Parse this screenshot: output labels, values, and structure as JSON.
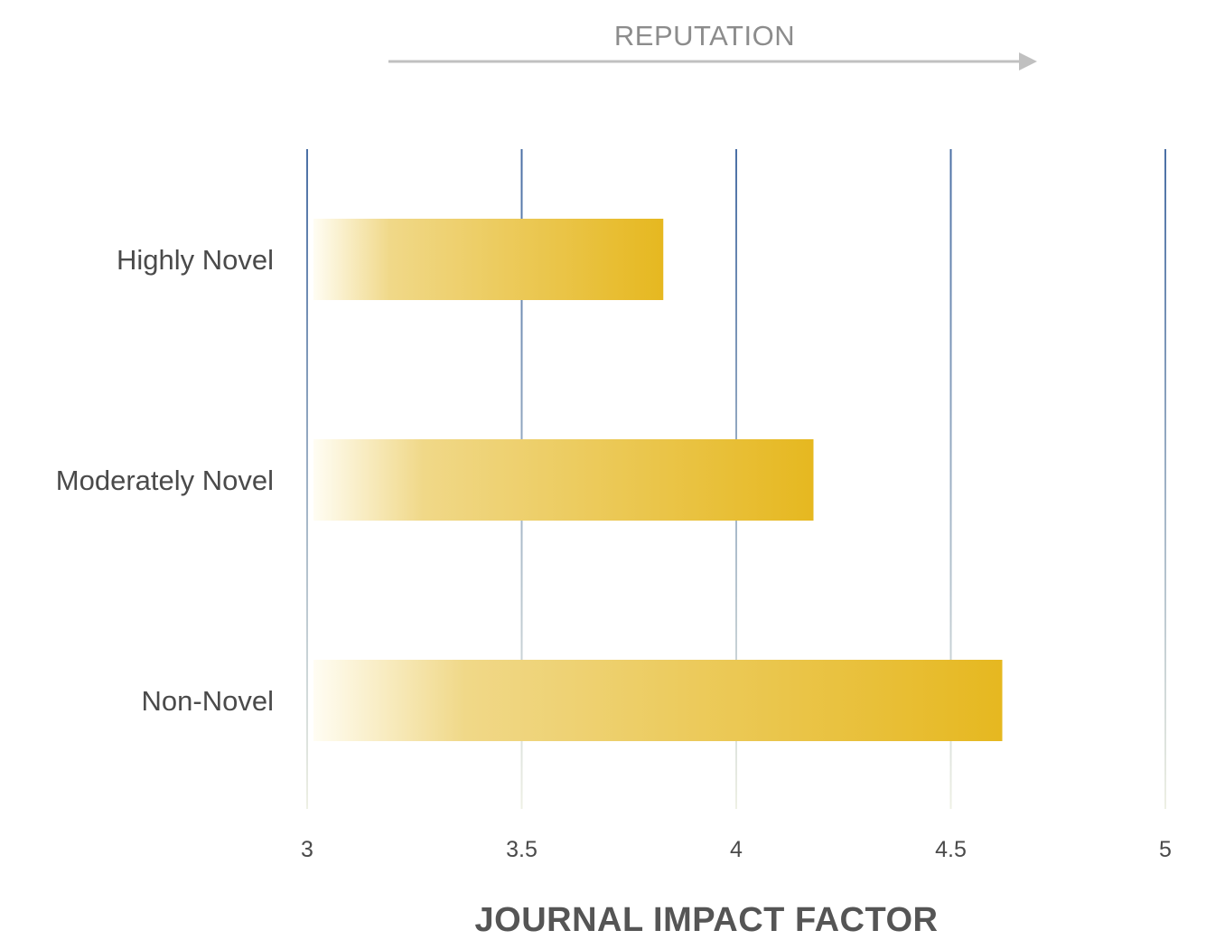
{
  "chart_data": {
    "type": "bar",
    "orientation": "horizontal",
    "categories": [
      "Highly Novel",
      "Moderately Novel",
      "Non-Novel"
    ],
    "values": [
      3.83,
      4.18,
      4.62
    ],
    "xlabel": "JOURNAL IMPACT FACTOR",
    "ylabel": "",
    "xlim": [
      3,
      5
    ],
    "xticks": [
      "3",
      "3.5",
      "4",
      "4.5",
      "5"
    ],
    "xtick_values": [
      3,
      3.5,
      4,
      4.5,
      5
    ],
    "grid": "vertical",
    "annotation": {
      "text": "REPUTATION",
      "arrow_direction": "right"
    },
    "colors": {
      "bar": "#e6b820",
      "bar_fade": "#fffdf3",
      "grid_top": "#4a6fa5",
      "grid_bottom": "#eef0e4",
      "arrow": "#c0c0c0"
    }
  }
}
